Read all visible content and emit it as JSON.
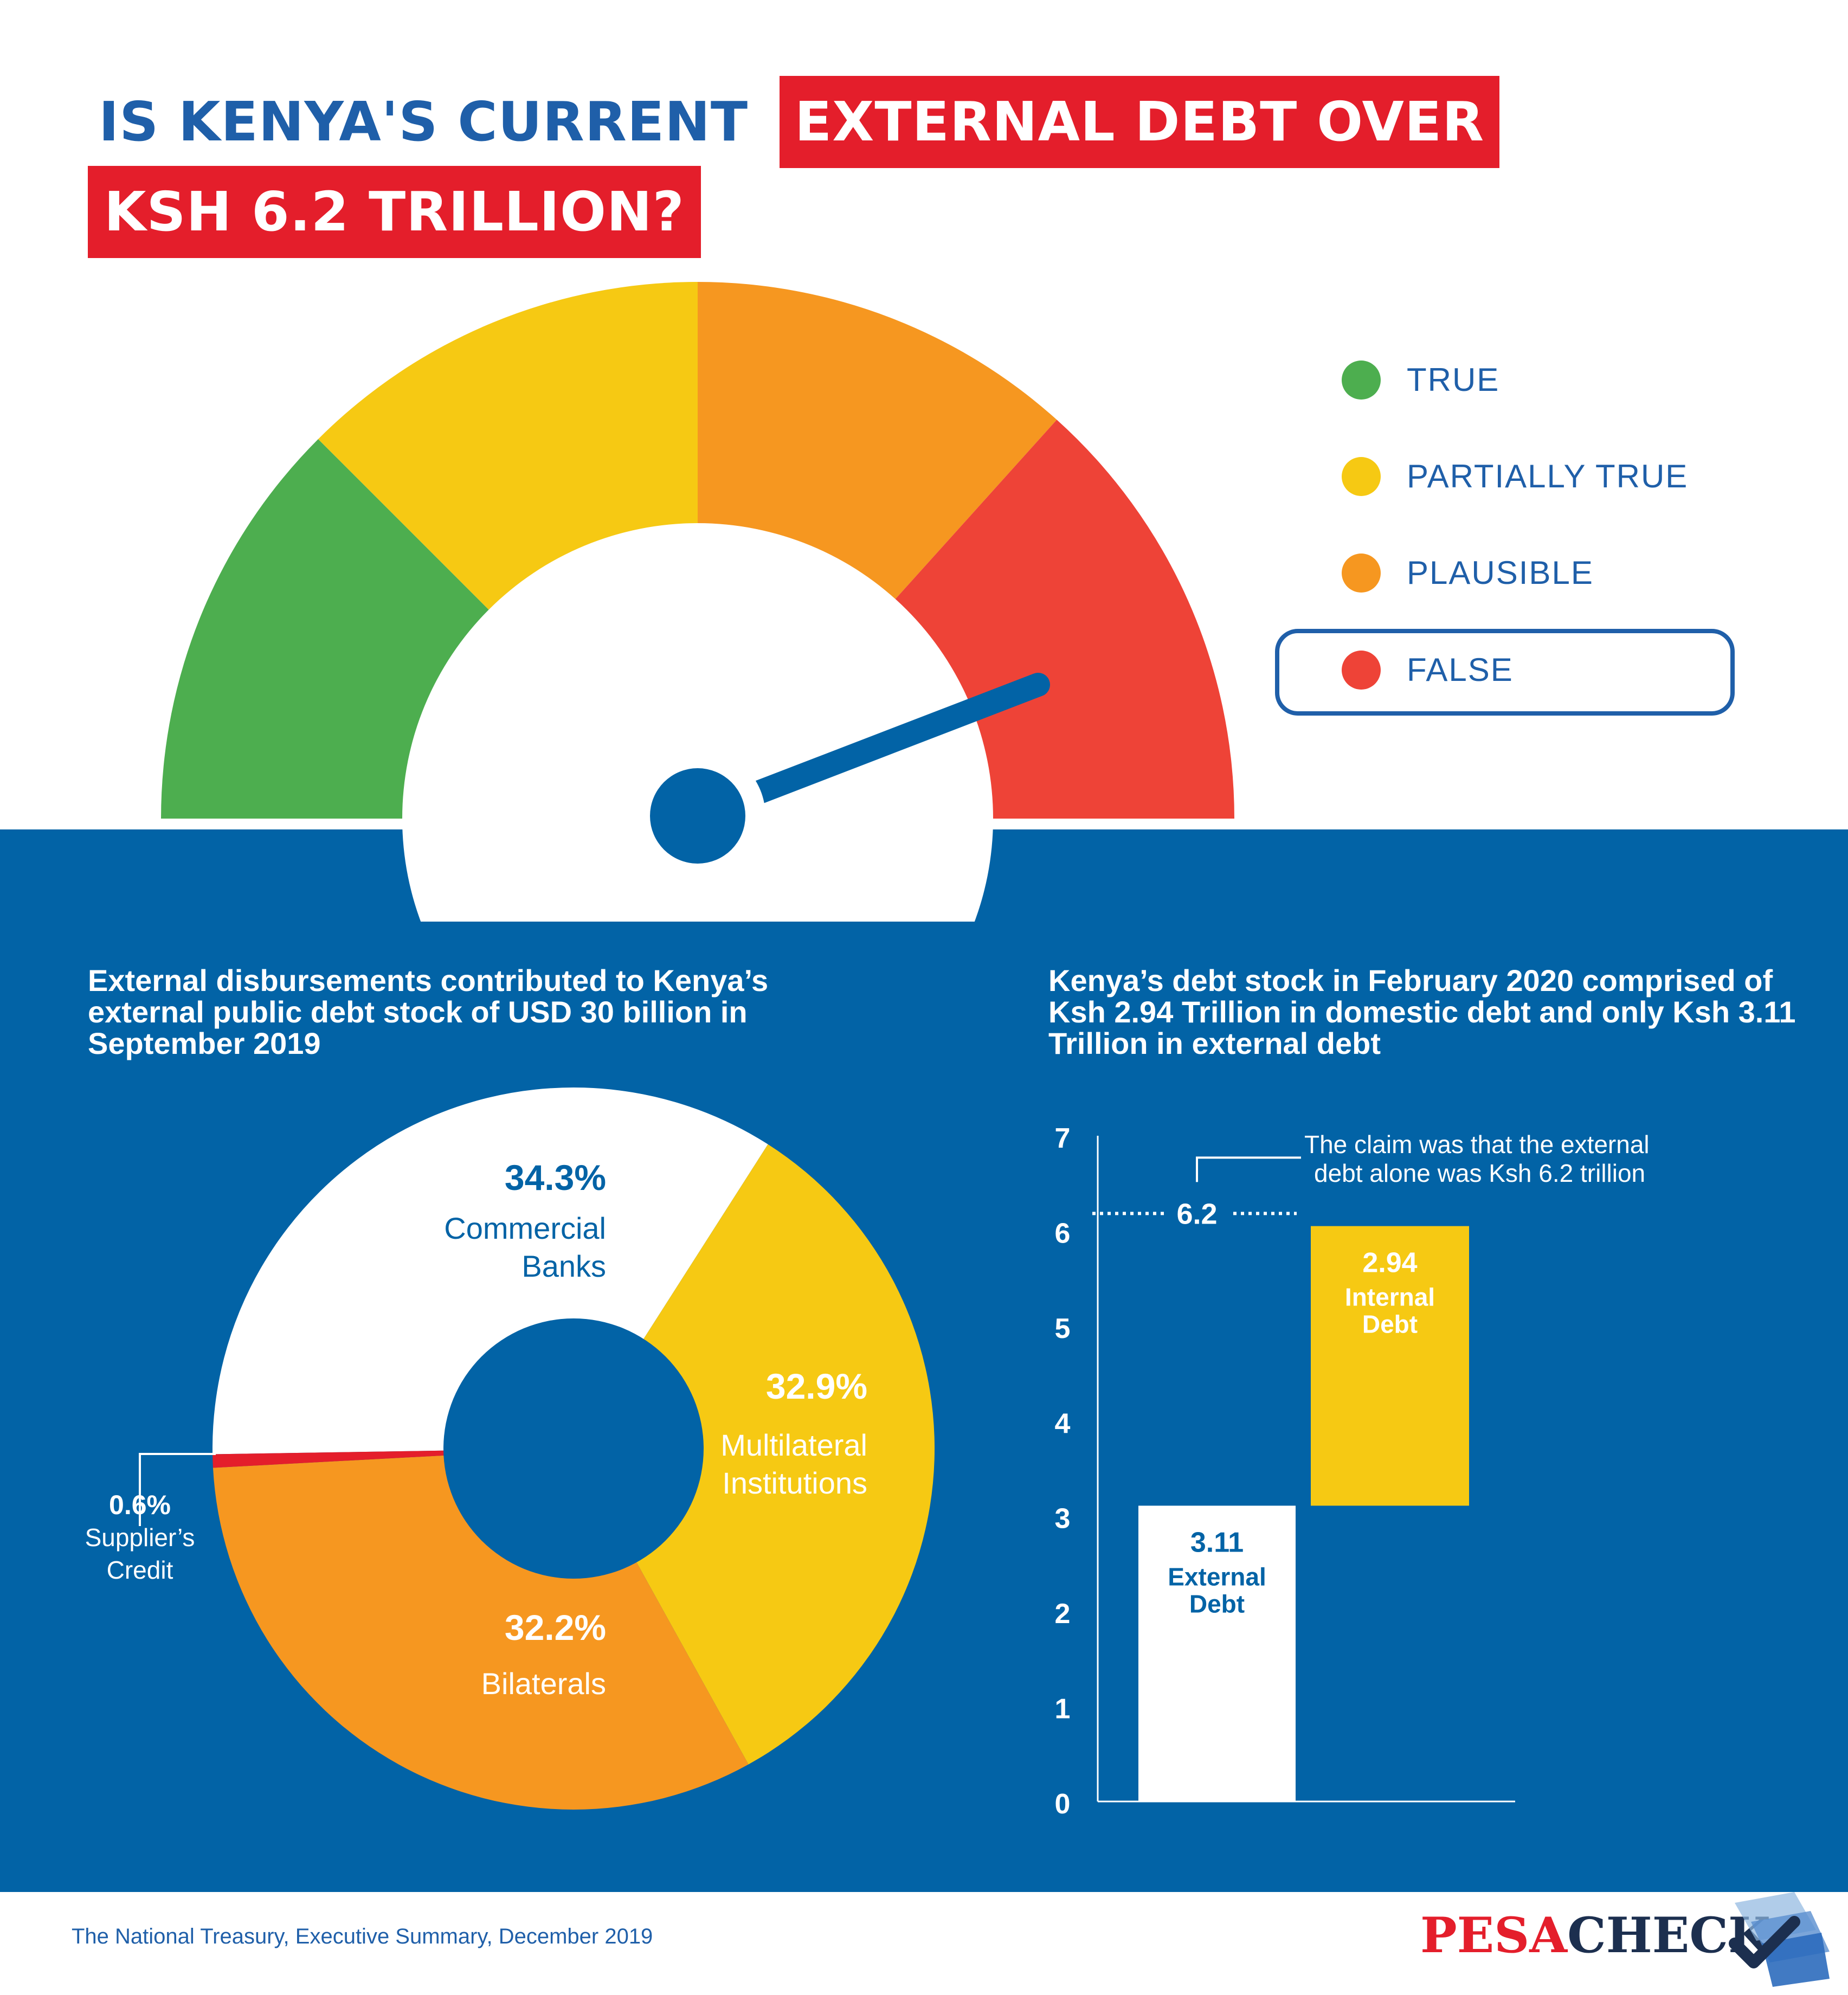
{
  "title": {
    "line1_plain": "IS KENYA'S CURRENT",
    "line1_highlight": "EXTERNAL DEBT OVER",
    "line2_highlight": "KSH 6.2 TRILLION?"
  },
  "rating_meter": {
    "segments": [
      {
        "label": "TRUE",
        "color": "#4dae4f"
      },
      {
        "label": "PARTIALLY TRUE",
        "color": "#f6c913"
      },
      {
        "label": "PLAUSIBLE",
        "color": "#f69720"
      },
      {
        "label": "FALSE",
        "color": "#ee4337"
      }
    ],
    "selected": "FALSE",
    "needle_color": "#0263a6"
  },
  "left_chart": {
    "heading": "External disbursements contributed to Kenya’s external public debt stock of USD 30 billion in September 2019"
  },
  "right_chart": {
    "heading": "Kenya’s debt stock in February 2020 comprised of Ksh 2.94 Trillion in domestic debt and only Ksh 3.11 Trillion in external debt"
  },
  "chart_data": [
    {
      "type": "pie",
      "slices": [
        {
          "value": "34.3%",
          "label_line1": "Commercial",
          "label_line2": "Banks",
          "percent": 34.3,
          "color": "#ffffff"
        },
        {
          "value": "32.9%",
          "label_line1": "Multilateral",
          "label_line2": "Institutions",
          "percent": 32.9,
          "color": "#f6c913"
        },
        {
          "value": "32.2%",
          "label_line1": "Bilaterals",
          "label_line2": "",
          "percent": 32.2,
          "color": "#f69720"
        },
        {
          "value": "0.6%",
          "label_line1": "Supplier’s",
          "label_line2": "Credit",
          "percent": 0.6,
          "color": "#e41e2b"
        }
      ]
    },
    {
      "type": "bar",
      "ylim": [
        0,
        7
      ],
      "yticks": [
        "0",
        "1",
        "2",
        "3",
        "4",
        "5",
        "6",
        "7"
      ],
      "bars": [
        {
          "value": "3.11",
          "label_line1": "External",
          "label_line2": "Debt",
          "base": 0,
          "top": 3.11,
          "color": "#ffffff"
        },
        {
          "value": "2.94",
          "label_line1": "Internal",
          "label_line2": "Debt",
          "base": 3.11,
          "top": 6.05,
          "color": "#f6c913"
        }
      ],
      "reference_line": {
        "value": 6.2,
        "label": "6.2"
      },
      "annotation_line1": "The claim was that the external",
      "annotation_line2": "debt alone was Ksh 6.2 trillion"
    }
  ],
  "footer": {
    "source": "The National Treasury, Executive Summary, December 2019",
    "logo_part1": "PESA",
    "logo_part2": "CHECK"
  }
}
